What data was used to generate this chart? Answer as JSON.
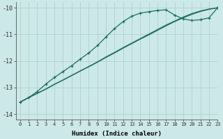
{
  "xlabel": "Humidex (Indice chaleur)",
  "ylabel": "",
  "bg_color": "#cce8e8",
  "grid_color": "#aacece",
  "line_color": "#1a6e5e",
  "xlim": [
    -0.5,
    23
  ],
  "ylim": [
    -14.2,
    -9.8
  ],
  "yticks": [
    -14,
    -13,
    -12,
    -11,
    -10
  ],
  "xticks": [
    0,
    1,
    2,
    3,
    4,
    5,
    6,
    7,
    8,
    9,
    10,
    11,
    12,
    13,
    14,
    15,
    16,
    17,
    18,
    19,
    20,
    21,
    22,
    23
  ],
  "x": [
    0,
    1,
    2,
    3,
    4,
    5,
    6,
    7,
    8,
    9,
    10,
    11,
    12,
    13,
    14,
    15,
    16,
    17,
    18,
    19,
    20,
    21,
    22,
    23
  ],
  "line_straight1": [
    -13.55,
    -13.38,
    -13.22,
    -13.06,
    -12.88,
    -12.72,
    -12.55,
    -12.38,
    -12.21,
    -12.04,
    -11.85,
    -11.68,
    -11.5,
    -11.33,
    -11.16,
    -10.99,
    -10.82,
    -10.65,
    -10.5,
    -10.35,
    -10.22,
    -10.12,
    -10.05,
    -10.0
  ],
  "line_straight2": [
    -13.55,
    -13.38,
    -13.22,
    -13.06,
    -12.88,
    -12.72,
    -12.55,
    -12.38,
    -12.22,
    -12.05,
    -11.87,
    -11.7,
    -11.52,
    -11.35,
    -11.18,
    -11.02,
    -10.85,
    -10.68,
    -10.52,
    -10.38,
    -10.25,
    -10.14,
    -10.06,
    -10.0
  ],
  "line_marked": [
    -13.55,
    -13.38,
    -13.15,
    -12.87,
    -12.62,
    -12.4,
    -12.18,
    -11.93,
    -11.7,
    -11.42,
    -11.1,
    -10.78,
    -10.52,
    -10.32,
    -10.2,
    -10.15,
    -10.1,
    -10.08,
    -10.28,
    -10.42,
    -10.48,
    -10.45,
    -10.38,
    -10.0
  ],
  "marker_x": [
    0,
    1,
    2,
    3,
    4,
    5,
    6,
    7,
    8,
    9,
    10,
    11,
    12,
    13,
    14,
    15,
    16,
    17,
    18,
    19,
    20,
    21,
    22,
    23
  ]
}
